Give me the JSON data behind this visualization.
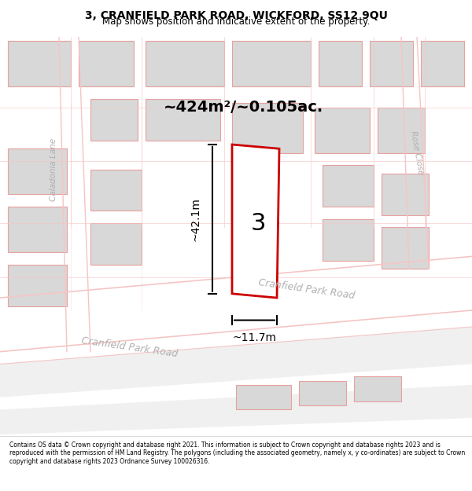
{
  "title_line1": "3, CRANFIELD PARK ROAD, WICKFORD, SS12 9QU",
  "title_line2": "Map shows position and indicative extent of the property.",
  "footer_text": "Contains OS data © Crown copyright and database right 2021. This information is subject to Crown copyright and database rights 2023 and is reproduced with the permission of HM Land Registry. The polygons (including the associated geometry, namely x, y co-ordinates) are subject to Crown copyright and database rights 2023 Ordnance Survey 100026316.",
  "area_label": "~424m²/~0.105ac.",
  "width_label": "~11.7m",
  "height_label": "~42.1m",
  "plot_number": "3",
  "map_bg": "#ffffff",
  "road_color": "#f5c5c5",
  "building_color": "#d8d8d8",
  "building_edge": "#e8a0a0",
  "highlight_color": "#cc0000",
  "road_text_color": "#b0b0b0",
  "caladonia_lane_label": "Caladonia Lane",
  "rose_close_label": "Rose Close",
  "cranfield_park_road_label": "Cranfield Park Road"
}
